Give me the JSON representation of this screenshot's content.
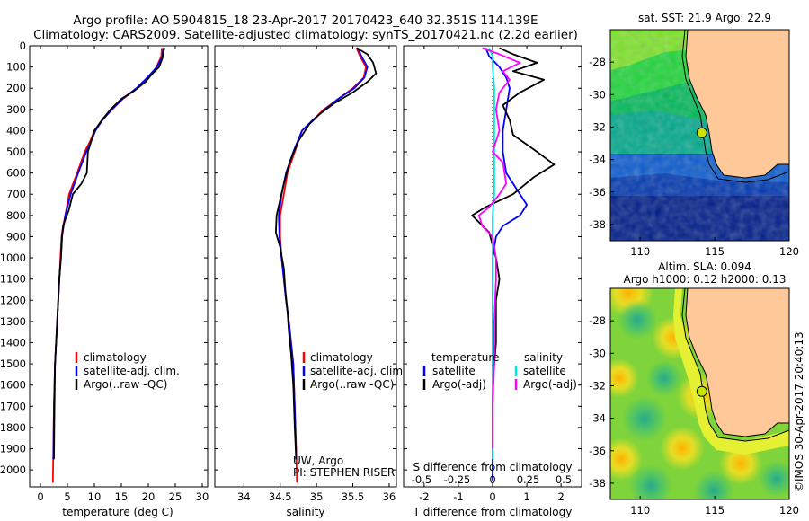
{
  "header": {
    "title_line1": "Argo profile: AO 5904815_18 23-Apr-2017 20170423_640 32.351S 114.139E",
    "title_line2": "Climatology: CARS2009. Satellite-adjusted climatology: synTS_20170421.nc (2.2d earlier)"
  },
  "colors": {
    "climatology": "#ff0000",
    "satellite": "#0000ff",
    "argo": "#000000",
    "salinity_satellite": "#00e5e5",
    "salinity_argo": "#ff00ff",
    "land": "#ffc899"
  },
  "chart_data": [
    {
      "id": "temperature",
      "type": "line",
      "xlabel": "temperature (deg C)",
      "xlim": [
        -2,
        31
      ],
      "xticks": [
        0,
        5,
        10,
        15,
        20,
        25,
        30
      ],
      "ylim": [
        2080,
        0
      ],
      "yticks": [
        0,
        100,
        200,
        300,
        400,
        500,
        600,
        700,
        800,
        900,
        1000,
        1100,
        1200,
        1300,
        1400,
        1500,
        1600,
        1700,
        1800,
        1900,
        2000
      ],
      "legend": {
        "placement": "middle-left",
        "entries": [
          "climatology",
          "satellite-adj. clim.",
          "Argo(..raw -QC)"
        ]
      },
      "series": [
        {
          "name": "climatology",
          "color": "#ff0000",
          "x": [
            22.5,
            22.4,
            21.5,
            20.0,
            18.0,
            15.3,
            13.3,
            11.5,
            10.0,
            9.2,
            8.2,
            6.8,
            5.3,
            4.6,
            4.2,
            3.9,
            3.7,
            3.5,
            3.3,
            3.1,
            2.9,
            2.7,
            2.5,
            2.4,
            2.3
          ],
          "y": [
            10,
            50,
            100,
            150,
            200,
            250,
            300,
            350,
            400,
            450,
            500,
            600,
            700,
            800,
            850,
            900,
            1000,
            1100,
            1200,
            1300,
            1400,
            1500,
            1700,
            1900,
            2060
          ]
        },
        {
          "name": "satellite-adj. clim.",
          "color": "#0000ff",
          "x": [
            22.8,
            22.6,
            21.6,
            19.8,
            17.8,
            15.2,
            13.2,
            11.5,
            10.2,
            9.4,
            8.5,
            7.0,
            5.6,
            4.6,
            4.3,
            4.0,
            3.8,
            3.5,
            3.3,
            3.1,
            2.9,
            2.7,
            2.5,
            2.4
          ],
          "y": [
            10,
            50,
            100,
            150,
            200,
            250,
            300,
            350,
            400,
            450,
            500,
            600,
            700,
            800,
            850,
            900,
            1000,
            1100,
            1200,
            1300,
            1400,
            1500,
            1700,
            1950
          ]
        },
        {
          "name": "Argo(..raw -QC)",
          "color": "#000000",
          "x": [
            23.0,
            22.8,
            22.6,
            22.0,
            20.8,
            19.5,
            17.5,
            15.0,
            13.0,
            11.4,
            10.0,
            9.4,
            8.8,
            8.6,
            7.6,
            6.0,
            5.2,
            4.6,
            4.2,
            4.0,
            3.8,
            3.5,
            3.3,
            3.1,
            2.9,
            2.7,
            2.6,
            2.5
          ],
          "y": [
            10,
            30,
            60,
            100,
            130,
            170,
            210,
            250,
            300,
            350,
            400,
            450,
            500,
            600,
            650,
            700,
            780,
            820,
            850,
            900,
            1000,
            1100,
            1200,
            1300,
            1400,
            1500,
            1700,
            1950
          ]
        }
      ]
    },
    {
      "id": "salinity",
      "type": "line",
      "xlabel": "salinity",
      "xlim": [
        33.6,
        36.1
      ],
      "xticks": [
        34,
        34.5,
        35,
        35.5,
        36
      ],
      "ylim": [
        2080,
        0
      ],
      "legend": {
        "placement": "middle-right",
        "entries": [
          "climatology",
          "satellite-adj. clim.",
          "Argo(..raw -QC)"
        ]
      },
      "annotations": [
        "UW, Argo",
        "PI: STEPHEN RISER"
      ],
      "series": [
        {
          "name": "climatology",
          "color": "#ff0000",
          "x": [
            35.55,
            35.6,
            35.68,
            35.65,
            35.5,
            35.3,
            35.1,
            34.95,
            34.8,
            34.7,
            34.6,
            34.55,
            34.5,
            34.5,
            34.52,
            34.55,
            34.58,
            34.62,
            34.65,
            34.68,
            34.7,
            34.72,
            34.73
          ],
          "y": [
            10,
            50,
            100,
            150,
            200,
            250,
            300,
            350,
            400,
            500,
            600,
            700,
            800,
            900,
            1000,
            1100,
            1200,
            1300,
            1400,
            1500,
            1700,
            1900,
            2060
          ]
        },
        {
          "name": "satellite-adj. clim.",
          "color": "#0000ff",
          "x": [
            35.57,
            35.62,
            35.7,
            35.66,
            35.52,
            35.3,
            35.12,
            34.95,
            34.8,
            34.68,
            34.58,
            34.52,
            34.48,
            34.49,
            34.52,
            34.55,
            34.58,
            34.62,
            34.65,
            34.68,
            34.7,
            34.72
          ],
          "y": [
            10,
            50,
            100,
            150,
            200,
            250,
            300,
            350,
            400,
            500,
            600,
            700,
            800,
            900,
            1000,
            1100,
            1200,
            1300,
            1400,
            1500,
            1700,
            1950
          ]
        },
        {
          "name": "Argo(..raw -QC)",
          "color": "#000000",
          "x": [
            35.55,
            35.7,
            35.78,
            35.82,
            35.7,
            35.5,
            35.25,
            35.05,
            34.9,
            34.75,
            34.63,
            34.55,
            34.45,
            34.44,
            34.5,
            34.55,
            34.57,
            34.6,
            34.62,
            34.65,
            34.68,
            34.7,
            34.72
          ],
          "y": [
            10,
            40,
            80,
            130,
            170,
            220,
            270,
            320,
            370,
            450,
            550,
            650,
            800,
            880,
            950,
            1050,
            1150,
            1250,
            1350,
            1450,
            1600,
            1800,
            1950
          ]
        }
      ]
    },
    {
      "id": "difference",
      "type": "line",
      "xlabel": "T difference from climatology",
      "xlabel_top": "S difference from climatology",
      "xlim": [
        -2.6,
        2.6
      ],
      "xticks": [
        -2,
        -1,
        0,
        1,
        2
      ],
      "xticks_top": [
        "-0.5",
        "-0.25",
        "0",
        "0.25",
        "0.5"
      ],
      "ylim": [
        2080,
        0
      ],
      "legend": {
        "placement": "middle",
        "entries": [
          "temperature",
          "satellite",
          "Argo(-adj)",
          "salinity",
          "satellite",
          "Argo(-adj)"
        ]
      },
      "series": [
        {
          "name": "satellite",
          "color": "#0000ff",
          "x": [
            -0.2,
            -0.1,
            0.2,
            0.4,
            0.5,
            0.4,
            0.3,
            0.3,
            0.4,
            0.6,
            0.8,
            1.0,
            0.8,
            0.3,
            0.1,
            0.0,
            0.0,
            0.0,
            0.0,
            0.0,
            0.0,
            0.0
          ],
          "y": [
            10,
            50,
            100,
            150,
            200,
            300,
            400,
            500,
            600,
            650,
            700,
            750,
            800,
            850,
            900,
            1000,
            1200,
            1400,
            1600,
            1800,
            1950,
            2050
          ]
        },
        {
          "name": "Argo(-adj)",
          "color": "#000000",
          "x": [
            0.2,
            0.6,
            1.3,
            0.6,
            1.5,
            0.8,
            0.3,
            0.5,
            0.6,
            1.3,
            1.8,
            1.2,
            0.6,
            -0.2,
            -0.6,
            -0.1,
            0.1,
            0.2,
            0.1,
            0.1,
            0.0,
            0.0,
            0.0
          ],
          "y": [
            10,
            40,
            80,
            120,
            160,
            220,
            280,
            350,
            420,
            500,
            560,
            620,
            700,
            760,
            800,
            880,
            1000,
            1100,
            1200,
            1400,
            1600,
            1800,
            1950
          ]
        },
        {
          "name": "salinity satellite",
          "color": "#00e5e5",
          "x": [
            -0.1,
            0.0,
            0.0,
            0.05,
            0.05,
            0.05,
            0.05,
            0.05,
            0.05,
            0.0,
            0.0,
            0.0,
            0.0,
            0.0,
            0.0,
            0.0
          ],
          "y": [
            10,
            50,
            100,
            200,
            300,
            400,
            500,
            600,
            700,
            800,
            1000,
            1200,
            1400,
            1600,
            1800,
            1950
          ]
        },
        {
          "name": "salinity Argo(-adj)",
          "color": "#ff00ff",
          "x": [
            -0.3,
            0.2,
            0.8,
            0.3,
            0.5,
            0.2,
            0.1,
            0.2,
            0.0,
            0.3,
            0.4,
            0.2,
            -0.1,
            -0.4,
            -0.3,
            0.0,
            0.1,
            0.1,
            0.05,
            0.05,
            0.0,
            0.0
          ],
          "y": [
            10,
            40,
            80,
            120,
            160,
            220,
            300,
            400,
            500,
            550,
            650,
            700,
            760,
            800,
            850,
            900,
            1000,
            1100,
            1300,
            1500,
            1700,
            1900
          ]
        }
      ]
    },
    {
      "id": "sst_map",
      "type": "heatmap",
      "title": "sat. SST: 21.9 Argo: 22.9",
      "xlim": [
        108,
        120
      ],
      "xticks": [
        110,
        115,
        120
      ],
      "ylim": [
        -39,
        -26
      ],
      "yticks": [
        -28,
        -30,
        -32,
        -34,
        -36,
        -38
      ],
      "marker": {
        "lon": 114.139,
        "lat": -32.351
      }
    },
    {
      "id": "sla_map",
      "type": "heatmap",
      "title_line1": "Altim. SLA: 0.094",
      "title_line2": "Argo h1000: 0.12 h2000: 0.13",
      "xlim": [
        108,
        120
      ],
      "xticks": [
        110,
        115,
        120
      ],
      "ylim": [
        -39,
        -26
      ],
      "yticks": [
        -28,
        -30,
        -32,
        -34,
        -36,
        -38
      ],
      "marker": {
        "lon": 114.139,
        "lat": -32.351
      }
    }
  ],
  "credit": "©IMOS 30-Apr-2017 20:40:13"
}
